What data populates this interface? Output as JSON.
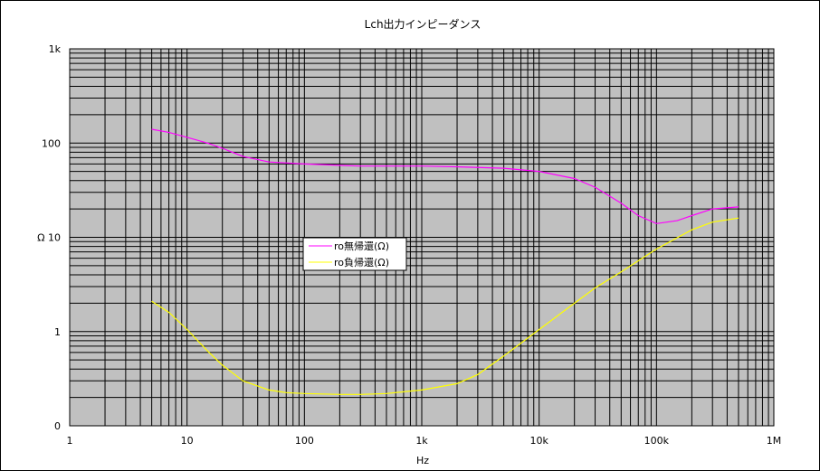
{
  "chart_data": {
    "type": "line",
    "title": "Lch出力インピーダンス",
    "xlabel": "Hz",
    "ylabel": "Ω",
    "x_scale": "log",
    "y_scale": "log",
    "xlim": [
      1,
      1000000
    ],
    "ylim": [
      0.1,
      1000
    ],
    "x_tick_labels": [
      "1",
      "10",
      "100",
      "1k",
      "10k",
      "100k",
      "1M"
    ],
    "y_tick_labels": [
      "0",
      "1",
      "Ω 10",
      "100",
      "1k"
    ],
    "grid": true,
    "plot_background": "#c0c0c0",
    "legend_position": "center-left",
    "series": [
      {
        "name": "ro無帰還(Ω)",
        "color": "#ff00ff",
        "x": [
          5,
          7,
          10,
          15,
          20,
          30,
          50,
          100,
          200,
          300,
          500,
          1000,
          2000,
          5000,
          10000,
          20000,
          30000,
          50000,
          70000,
          100000,
          150000,
          200000,
          300000,
          500000
        ],
        "y": [
          140,
          130,
          115,
          100,
          88,
          72,
          63,
          60,
          58,
          57,
          57,
          57,
          56,
          54,
          50,
          42,
          34,
          23,
          17,
          14,
          15,
          17,
          20,
          21
        ]
      },
      {
        "name": "ro負帰還(Ω)",
        "color": "#ffff00",
        "x": [
          5,
          7,
          10,
          15,
          20,
          30,
          50,
          70,
          100,
          200,
          300,
          500,
          1000,
          2000,
          3000,
          5000,
          10000,
          20000,
          30000,
          50000,
          100000,
          200000,
          300000,
          500000
        ],
        "y": [
          2.1,
          1.6,
          1.05,
          0.62,
          0.44,
          0.3,
          0.24,
          0.225,
          0.22,
          0.215,
          0.215,
          0.22,
          0.24,
          0.28,
          0.35,
          0.55,
          1.05,
          2.0,
          2.9,
          4.3,
          7.5,
          12,
          14.5,
          16
        ]
      }
    ]
  }
}
